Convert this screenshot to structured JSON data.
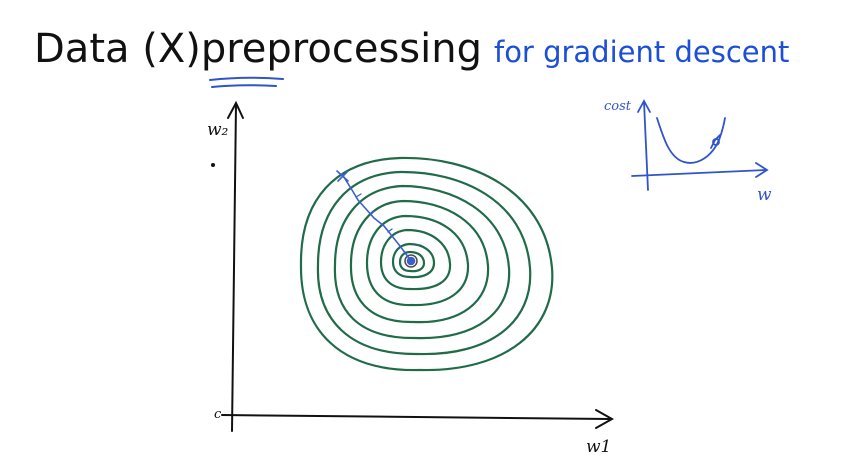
{
  "title": {
    "part1": "Data (X) ",
    "emphasis": "preprocessing",
    "subtitle": "for gradient descent"
  },
  "contour_plot": {
    "axis_label_y": "w₂",
    "axis_label_x": "w1",
    "origin_label": "c",
    "colors": {
      "axes": "#111111",
      "contours": "#1f6b4a",
      "path": "#3a5fd0",
      "center": "#4a4a4a"
    }
  },
  "cost_sketch": {
    "ylabel": "cost",
    "xlabel": "w",
    "color": "#2f55c8"
  }
}
